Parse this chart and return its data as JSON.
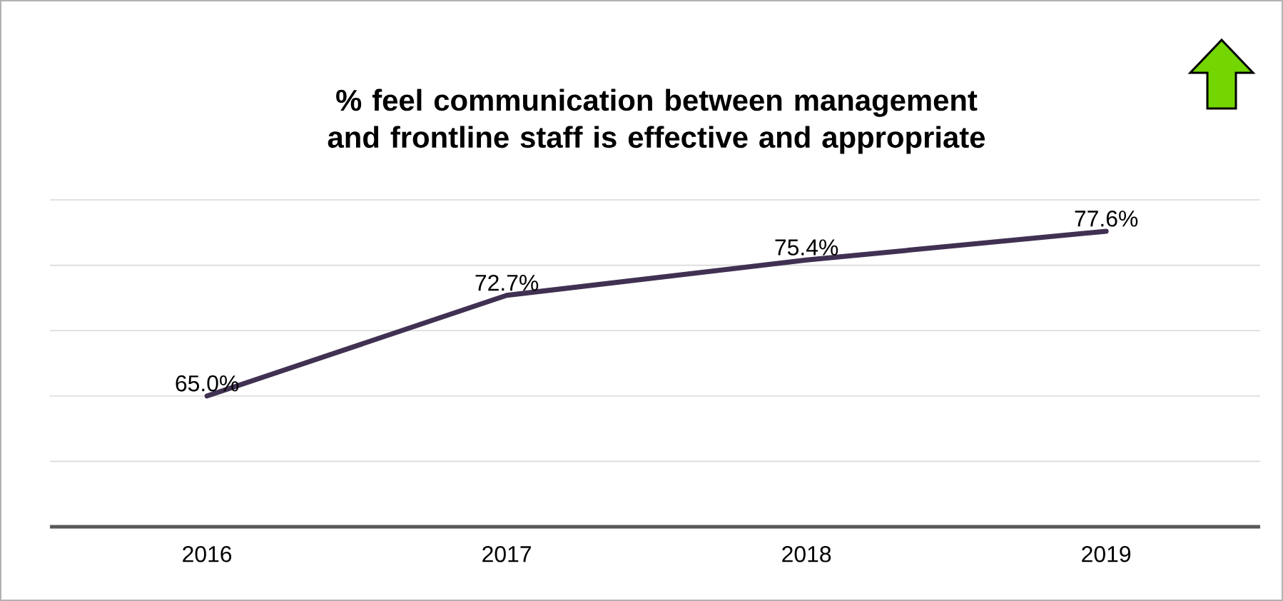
{
  "chart_data": {
    "type": "line",
    "title": "% feel communication between management and frontline staff is effective and appropriate",
    "categories": [
      "2016",
      "2017",
      "2018",
      "2019"
    ],
    "values": [
      65.0,
      72.7,
      75.4,
      77.6
    ],
    "value_labels": [
      "65.0%",
      "72.7%",
      "75.4%",
      "77.6%"
    ],
    "color": "#403152",
    "ylim": [
      55,
      80
    ],
    "yticks": [
      {
        "value": 60,
        "label": null
      },
      {
        "value": 65,
        "label": null
      },
      {
        "value": 70,
        "label": null
      },
      {
        "value": 75,
        "label": null
      },
      {
        "value": 80,
        "label": null
      }
    ],
    "grid": "y",
    "tick_labels": "x"
  }
}
